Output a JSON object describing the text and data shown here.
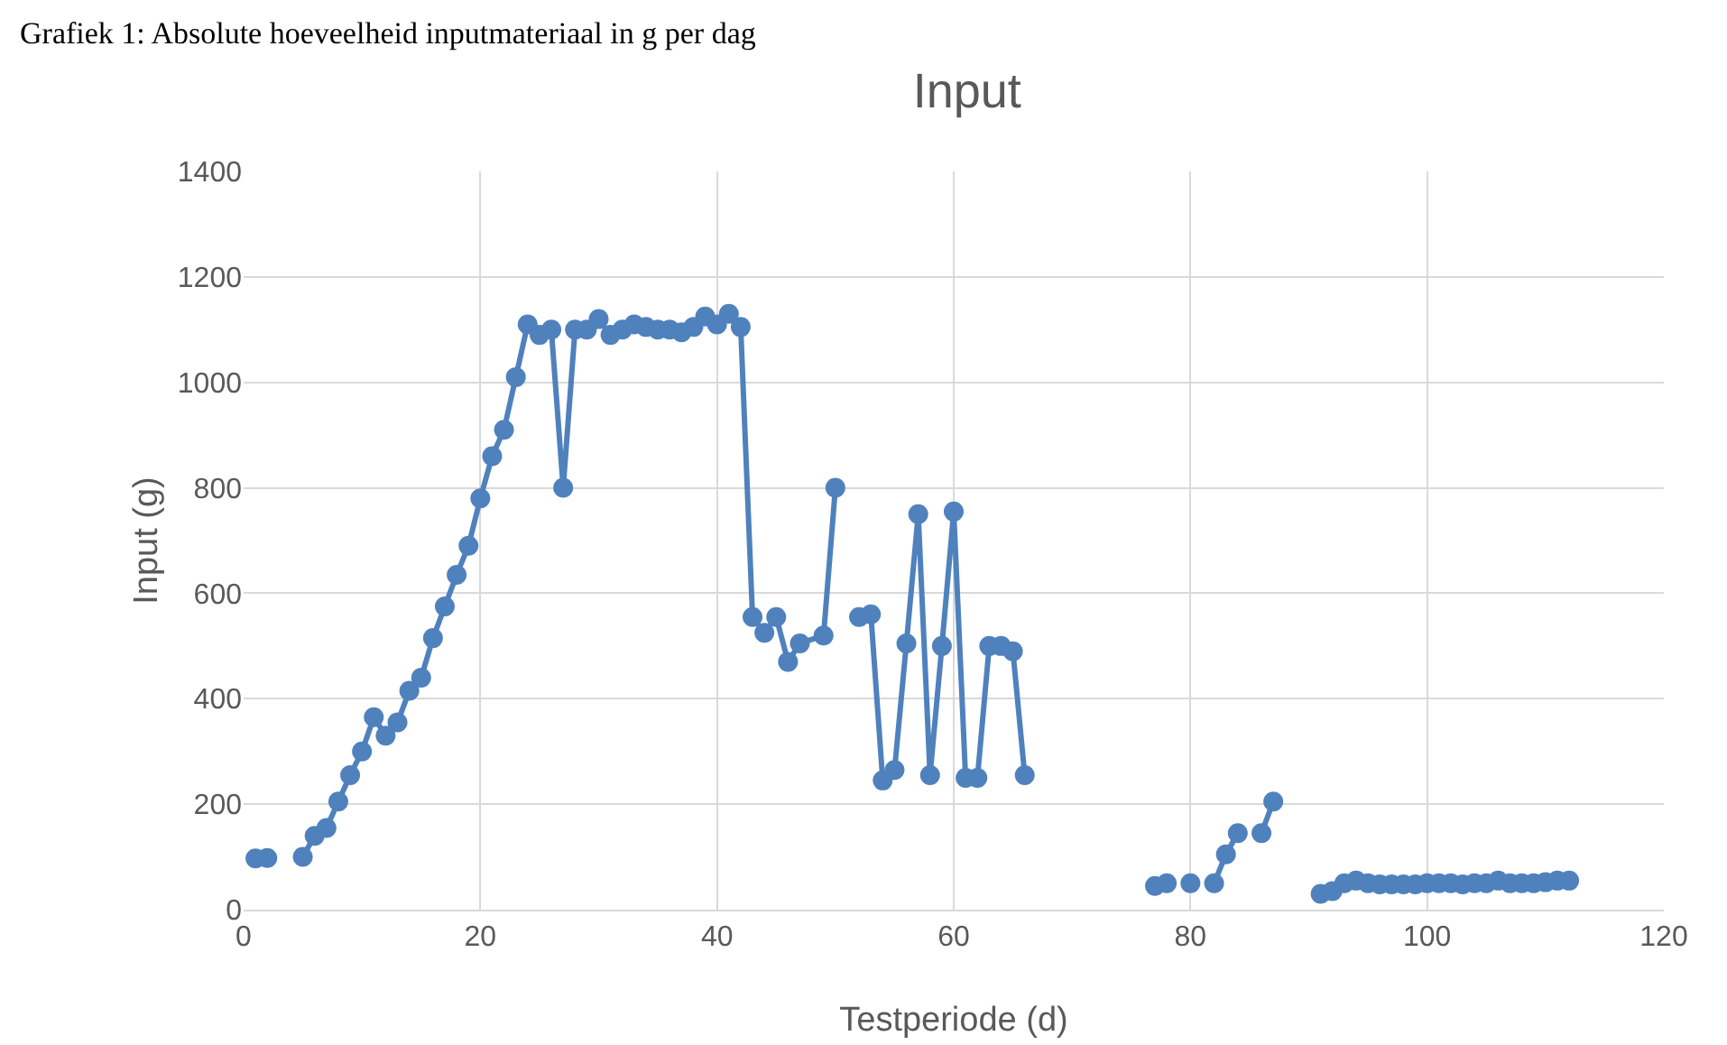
{
  "chart_data": {
    "type": "line",
    "title": "Input",
    "xlabel": "Testperiode (d)",
    "ylabel": "Input (g)",
    "annotations": [
      "Grafiek 1: Absolute hoeveelheid inputmateriaal in g per dag"
    ],
    "x": [
      1,
      2,
      3,
      5,
      6,
      7,
      8,
      9,
      10,
      11,
      12,
      13,
      14,
      15,
      16,
      17,
      18,
      19,
      20,
      21,
      22,
      23,
      24,
      25,
      26,
      27,
      28,
      29,
      30,
      31,
      32,
      33,
      34,
      35,
      36,
      37,
      38,
      39,
      40,
      41,
      42,
      43,
      44,
      45,
      46,
      47,
      49,
      50,
      51,
      52,
      53,
      54,
      55,
      56,
      57,
      58,
      59,
      60,
      61,
      62,
      63,
      64,
      65,
      66,
      70,
      77,
      78,
      79,
      80,
      81,
      82,
      83,
      84,
      85,
      86,
      87,
      89,
      91,
      92,
      93,
      94,
      95,
      96,
      97,
      98,
      99,
      100,
      101,
      102,
      103,
      104,
      105,
      106,
      107,
      108,
      109,
      110,
      111,
      112
    ],
    "series": [
      {
        "color": "#4f81bd",
        "values": [
          97,
          98,
          null,
          100,
          140,
          155,
          205,
          255,
          300,
          365,
          330,
          355,
          415,
          440,
          515,
          575,
          635,
          690,
          780,
          860,
          910,
          1010,
          1110,
          1090,
          1100,
          800,
          1100,
          1100,
          1120,
          1090,
          1100,
          1110,
          1105,
          1100,
          1100,
          1095,
          1105,
          1125,
          1110,
          1130,
          1105,
          555,
          525,
          555,
          470,
          505,
          520,
          800,
          null,
          555,
          560,
          245,
          265,
          505,
          750,
          255,
          500,
          755,
          250,
          250,
          500,
          500,
          490,
          255,
          null,
          45,
          50,
          null,
          50,
          null,
          50,
          105,
          145,
          null,
          145,
          205,
          null,
          30,
          35,
          50,
          55,
          50,
          48,
          48,
          48,
          48,
          50,
          50,
          50,
          48,
          50,
          50,
          55,
          50,
          50,
          50,
          52,
          55,
          55
        ]
      }
    ],
    "xlim": [
      0,
      120
    ],
    "xticks": [
      0,
      20,
      40,
      60,
      80,
      100,
      120
    ],
    "ylim": [
      0,
      1400
    ],
    "yticks": [
      0,
      200,
      400,
      600,
      800,
      1000,
      1200,
      1400
    ],
    "grid": true,
    "marker": "circle",
    "line_style": "solid"
  }
}
